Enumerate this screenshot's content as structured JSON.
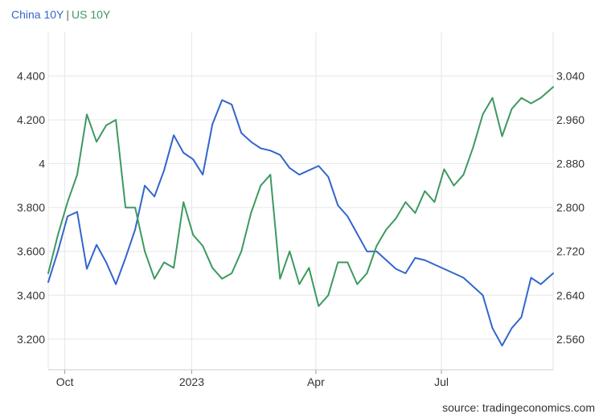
{
  "legend": {
    "china_label": "China 10Y",
    "separator": "|",
    "us_label": "US 10Y"
  },
  "source": "source: tradingeconomics.com",
  "colors": {
    "china": "#3366cc",
    "us": "#3d9960",
    "grid": "#e6e6e6",
    "text": "#333333"
  },
  "chart_data": {
    "type": "line",
    "title": "",
    "x_ticks": [
      "Oct",
      "2023",
      "Apr",
      "Jul"
    ],
    "x_tick_dates": [
      "2022-10-01",
      "2023-01-01",
      "2023-04-01",
      "2023-07-01"
    ],
    "xlim": [
      "2022-09-19",
      "2023-09-20"
    ],
    "left_axis": {
      "series": "China 10Y",
      "ticks": [
        "3.200",
        "3.400",
        "3.600",
        "3.800",
        "4",
        "4.200",
        "4.400"
      ],
      "tick_values": [
        3.2,
        3.4,
        3.6,
        3.8,
        4.0,
        4.2,
        4.4
      ],
      "ylim": [
        3.06,
        4.6
      ]
    },
    "right_axis": {
      "series": "US 10Y",
      "ticks": [
        "2.560",
        "2.640",
        "2.720",
        "2.800",
        "2.880",
        "2.960",
        "3.040"
      ],
      "tick_values": [
        2.56,
        2.64,
        2.72,
        2.8,
        2.88,
        2.96,
        3.04
      ],
      "ylim": [
        2.504,
        3.12
      ]
    },
    "grid": true,
    "legend_position": "top-left",
    "series": [
      {
        "name": "China 10Y",
        "axis": "left",
        "x": [
          "2022-09-19",
          "2022-09-26",
          "2022-10-03",
          "2022-10-10",
          "2022-10-17",
          "2022-10-24",
          "2022-10-31",
          "2022-11-07",
          "2022-11-14",
          "2022-11-21",
          "2022-11-28",
          "2022-12-05",
          "2022-12-12",
          "2022-12-19",
          "2022-12-26",
          "2023-01-02",
          "2023-01-09",
          "2023-01-16",
          "2023-01-23",
          "2023-01-30",
          "2023-02-06",
          "2023-02-13",
          "2023-02-20",
          "2023-02-27",
          "2023-03-06",
          "2023-03-13",
          "2023-03-20",
          "2023-03-27",
          "2023-04-03",
          "2023-04-10",
          "2023-04-17",
          "2023-04-24",
          "2023-05-01",
          "2023-05-08",
          "2023-05-15",
          "2023-05-22",
          "2023-05-29",
          "2023-06-05",
          "2023-06-12",
          "2023-06-19",
          "2023-06-26",
          "2023-07-03",
          "2023-07-10",
          "2023-07-17",
          "2023-07-24",
          "2023-07-31",
          "2023-08-07",
          "2023-08-14",
          "2023-08-21",
          "2023-08-28",
          "2023-09-04",
          "2023-09-11",
          "2023-09-20"
        ],
        "values": [
          3.46,
          3.6,
          3.76,
          3.78,
          3.52,
          3.63,
          3.55,
          3.45,
          3.57,
          3.7,
          3.9,
          3.85,
          3.97,
          4.13,
          4.05,
          4.02,
          3.95,
          4.18,
          4.29,
          4.27,
          4.14,
          4.1,
          4.07,
          4.06,
          4.04,
          3.98,
          3.95,
          3.97,
          3.99,
          3.94,
          3.81,
          3.76,
          3.68,
          3.6,
          3.6,
          3.56,
          3.52,
          3.5,
          3.57,
          3.56,
          3.54,
          3.52,
          3.5,
          3.48,
          3.44,
          3.4,
          3.25,
          3.17,
          3.25,
          3.3,
          3.48,
          3.45,
          3.5
        ]
      },
      {
        "name": "US 10Y",
        "axis": "right",
        "x": [
          "2022-09-19",
          "2022-09-26",
          "2022-10-03",
          "2022-10-10",
          "2022-10-17",
          "2022-10-24",
          "2022-10-31",
          "2022-11-07",
          "2022-11-14",
          "2022-11-21",
          "2022-11-28",
          "2022-12-05",
          "2022-12-12",
          "2022-12-19",
          "2022-12-26",
          "2023-01-02",
          "2023-01-09",
          "2023-01-16",
          "2023-01-23",
          "2023-01-30",
          "2023-02-06",
          "2023-02-13",
          "2023-02-20",
          "2023-02-27",
          "2023-03-06",
          "2023-03-13",
          "2023-03-20",
          "2023-03-27",
          "2023-04-03",
          "2023-04-10",
          "2023-04-17",
          "2023-04-24",
          "2023-05-01",
          "2023-05-08",
          "2023-05-15",
          "2023-05-22",
          "2023-05-29",
          "2023-06-05",
          "2023-06-12",
          "2023-06-19",
          "2023-06-26",
          "2023-07-03",
          "2023-07-10",
          "2023-07-17",
          "2023-07-24",
          "2023-07-31",
          "2023-08-07",
          "2023-08-14",
          "2023-08-21",
          "2023-08-28",
          "2023-09-04",
          "2023-09-11",
          "2023-09-20"
        ],
        "values": [
          2.68,
          2.75,
          2.81,
          2.86,
          2.97,
          2.92,
          2.95,
          2.96,
          2.8,
          2.8,
          2.72,
          2.67,
          2.7,
          2.69,
          2.81,
          2.75,
          2.73,
          2.69,
          2.67,
          2.68,
          2.72,
          2.79,
          2.84,
          2.86,
          2.67,
          2.72,
          2.66,
          2.69,
          2.62,
          2.64,
          2.7,
          2.7,
          2.66,
          2.68,
          2.73,
          2.76,
          2.78,
          2.81,
          2.79,
          2.83,
          2.81,
          2.87,
          2.84,
          2.86,
          2.91,
          2.97,
          3.0,
          2.93,
          2.98,
          3.0,
          2.99,
          3.0,
          3.02
        ]
      }
    ]
  }
}
